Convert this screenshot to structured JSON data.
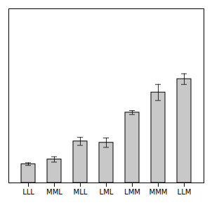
{
  "chart_data": {
    "type": "bar",
    "categories": [
      "LLL",
      "MML",
      "MLL",
      "LML",
      "LMM",
      "MMM",
      "LLM"
    ],
    "values": [
      0.28,
      0.35,
      0.62,
      0.6,
      1.05,
      1.35,
      1.55
    ],
    "errors": [
      0.02,
      0.04,
      0.06,
      0.07,
      0.03,
      0.12,
      0.08
    ],
    "color": "#c8c8c8",
    "ylim": [
      0,
      2.6
    ],
    "yticks": [],
    "tick_labels": "x"
  }
}
